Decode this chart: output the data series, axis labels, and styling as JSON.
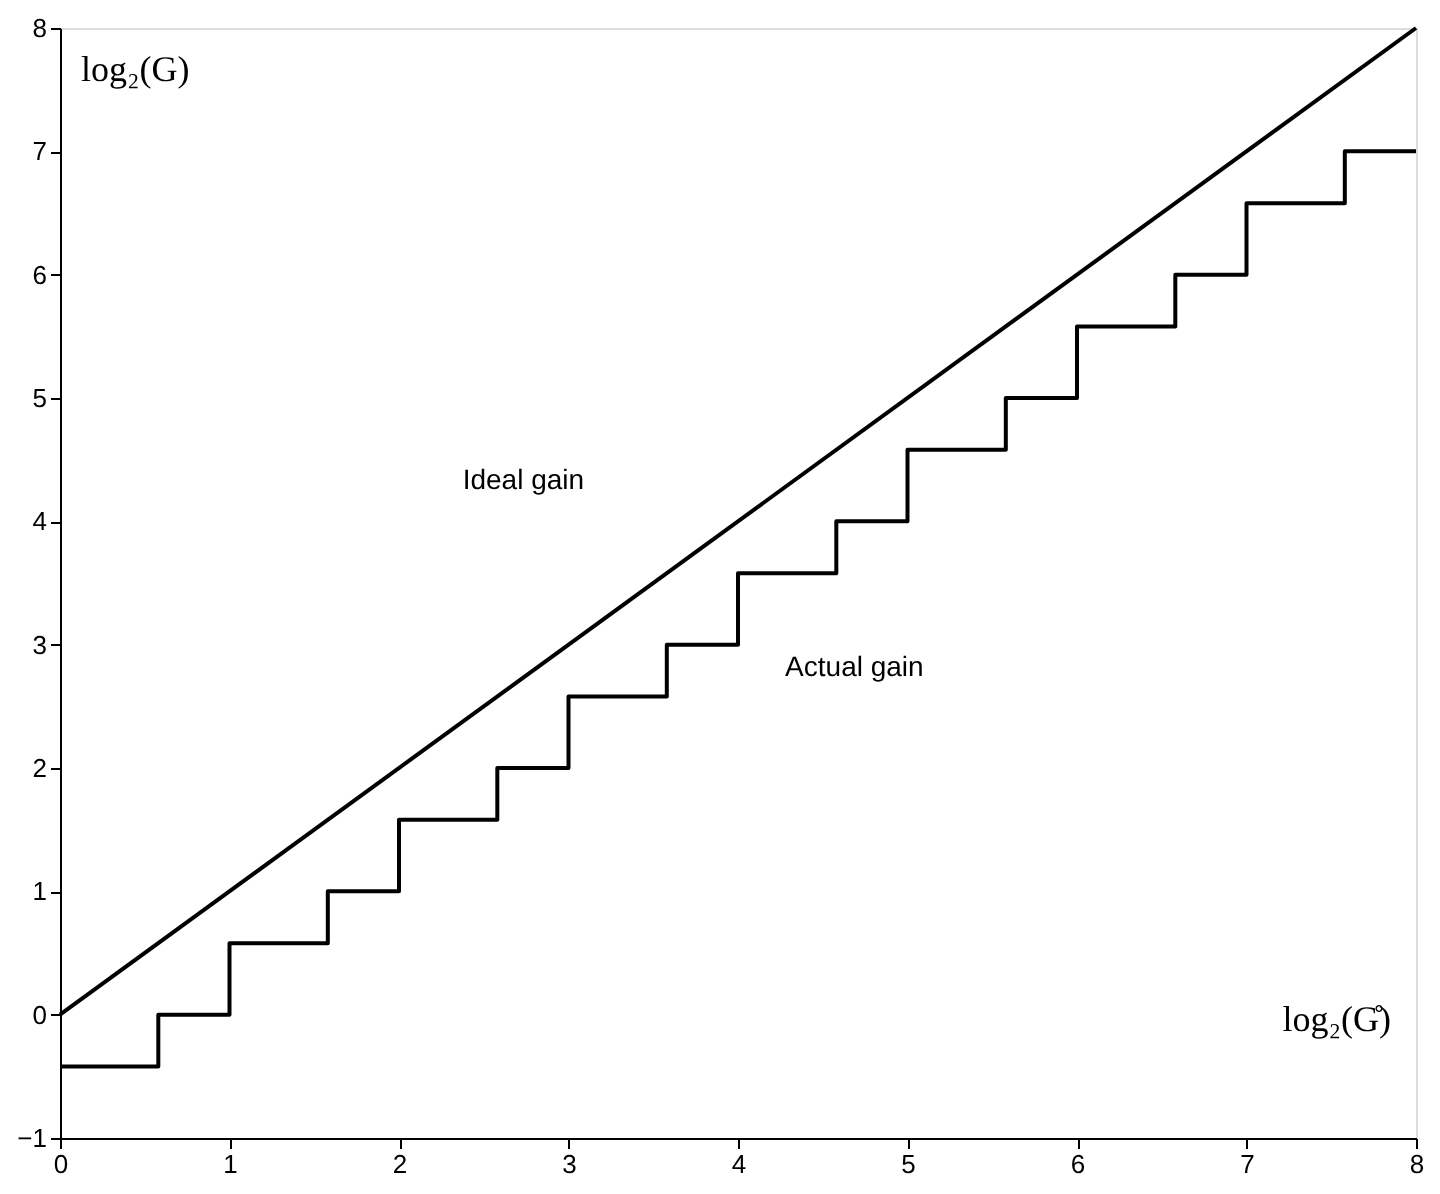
{
  "chart_data": {
    "type": "line",
    "xlabel": "log₂(G̊)",
    "ylabel": "log₂(G)",
    "xlim": [
      0,
      8
    ],
    "ylim": [
      -1,
      8
    ],
    "xticks": [
      0,
      1,
      2,
      3,
      4,
      5,
      6,
      7,
      8
    ],
    "yticks": [
      -1,
      0,
      1,
      2,
      3,
      4,
      5,
      6,
      7,
      8
    ],
    "grid": false,
    "series": [
      {
        "color": "#000000",
        "x": [
          0,
          8
        ],
        "values": [
          0,
          8
        ]
      },
      {
        "type": "step",
        "color": "#000000",
        "x": [
          0,
          0.58,
          1,
          1.58,
          2,
          2.58,
          3,
          3.58,
          4,
          4.58,
          5,
          5.58,
          6,
          6.58,
          7,
          7.58,
          8
        ],
        "values": [
          -0.42,
          0,
          0.58,
          1,
          1.58,
          2,
          2.58,
          3,
          3.58,
          4,
          4.58,
          5,
          5.58,
          6,
          6.58,
          7,
          7
        ]
      }
    ],
    "annotations": [
      "Ideal gain",
      "Actual gain"
    ]
  }
}
